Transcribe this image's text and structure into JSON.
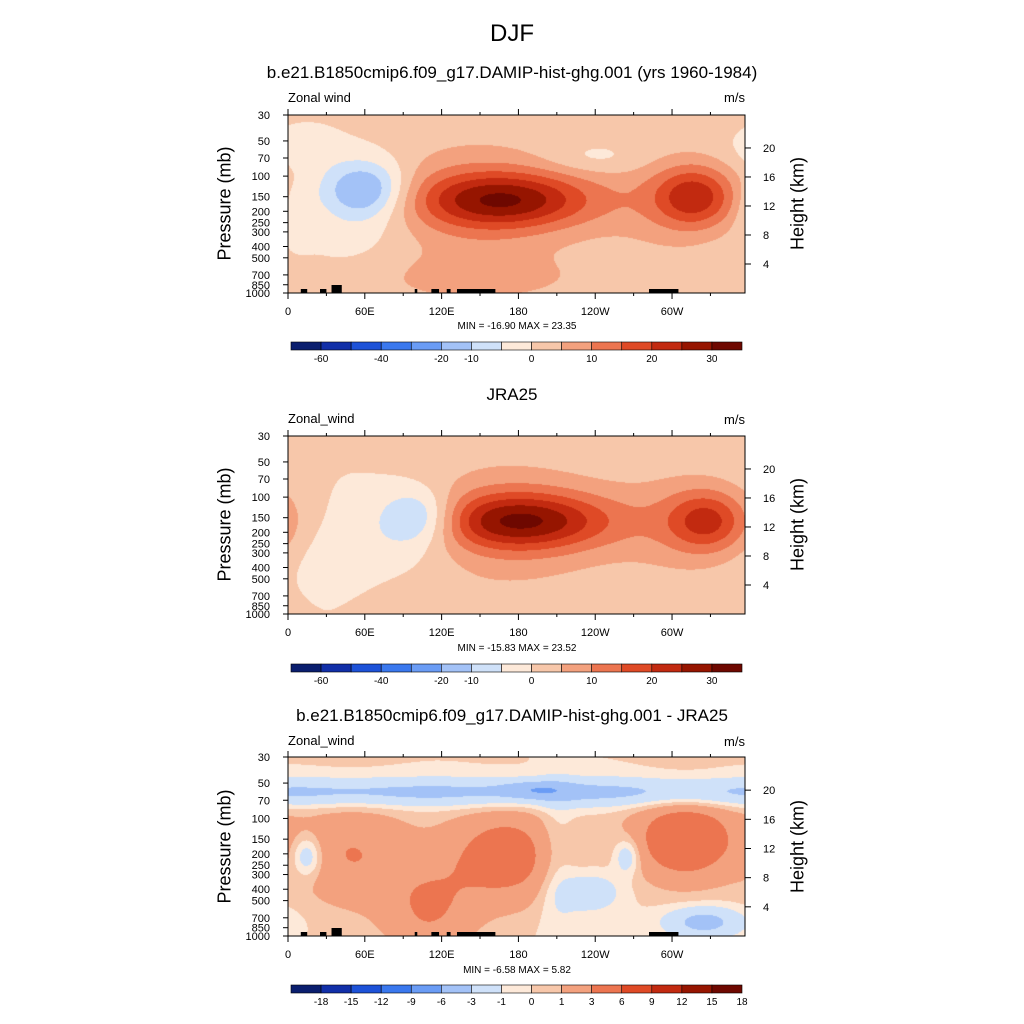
{
  "title": "DJF",
  "colors": {
    "full_palette": [
      "#0a1e6e",
      "#112fa8",
      "#1d52d8",
      "#3a78ee",
      "#6a9cf5",
      "#a3c2f7",
      "#cfe1f9",
      "#fde9d9",
      "#f7c7aa",
      "#f3a17e",
      "#ec7550",
      "#df4a26",
      "#c22a10",
      "#961500",
      "#6e0800"
    ],
    "diff_palette": [
      "#0a1e6e",
      "#112fa8",
      "#1d52d8",
      "#3a78ee",
      "#6a9cf5",
      "#a3c2f7",
      "#cfe1f9",
      "#fde9d9",
      "#f7c7aa",
      "#f3a17e",
      "#ec7550",
      "#df4a26",
      "#c22a10",
      "#961500",
      "#6e0800"
    ],
    "topo": "#000000"
  },
  "panels": [
    {
      "title": "b.e21.B1850cmip6.f09_g17.DAMIP-hist-ghg.001 (yrs 1960-1984)",
      "variable": "Zonal wind",
      "units": "m/s",
      "ylabel_left": "Pressure (mb)",
      "ylabel_right": "Height (km)",
      "stats": "MIN = -16.90  MAX =  23.35",
      "colorbar_labels": [
        "-60",
        "-40",
        "-20",
        "-10",
        "0",
        "10",
        "20",
        "30"
      ],
      "topography": true
    },
    {
      "title": "JRA25",
      "variable": "Zonal_wind",
      "units": "m/s",
      "ylabel_left": "Pressure (mb)",
      "ylabel_right": "Height (km)",
      "stats": "MIN = -15.83  MAX =  23.52",
      "colorbar_labels": [
        "-60",
        "-40",
        "-20",
        "-10",
        "0",
        "10",
        "20",
        "30"
      ],
      "topography": false
    },
    {
      "title": "b.e21.B1850cmip6.f09_g17.DAMIP-hist-ghg.001 - JRA25",
      "variable": "Zonal_wind",
      "units": "m/s",
      "ylabel_left": "Pressure (mb)",
      "ylabel_right": "Height (km)",
      "stats": "MIN =  -6.58  MAX =   5.82",
      "colorbar_labels": [
        "-18",
        "-15",
        "-12",
        "-9",
        "-6",
        "-3",
        "-1",
        "0",
        "1",
        "3",
        "6",
        "9",
        "12",
        "15",
        "18"
      ],
      "topography": true
    }
  ],
  "chart_data": [
    {
      "type": "heatmap",
      "title": "b.e21.B1850cmip6.f09_g17.DAMIP-hist-ghg.001 (yrs 1960-1984)",
      "variable": "Zonal wind",
      "units": "m/s",
      "xlabel": "",
      "ylabel": "Pressure (mb)",
      "ylabel_right": "Height (km)",
      "x_ticks": [
        "0",
        "60E",
        "120E",
        "180",
        "120W",
        "60W"
      ],
      "x_tick_values": [
        0,
        60,
        120,
        180,
        240,
        300
      ],
      "xlim": [
        0,
        357
      ],
      "y_ticks": [
        "30",
        "50",
        "70",
        "100",
        "150",
        "200",
        "250",
        "300",
        "400",
        "500",
        "700",
        "850",
        "1000"
      ],
      "y_tick_values": [
        30,
        50,
        70,
        100,
        150,
        200,
        250,
        300,
        400,
        500,
        700,
        850,
        1000
      ],
      "y_scale": "log",
      "ylim": [
        1000,
        30
      ],
      "y_right_ticks": [
        "4",
        "8",
        "12",
        "16",
        "20"
      ],
      "levels": [
        -70,
        -60,
        -50,
        -40,
        -30,
        -20,
        -10,
        -5,
        0,
        5,
        10,
        15,
        20,
        25,
        30,
        35
      ],
      "min": -16.9,
      "max": 23.35,
      "features": [
        {
          "lon": 170,
          "p": 160,
          "value": 23,
          "sx": 70,
          "sp": 0.55
        },
        {
          "lon": 145,
          "p": 170,
          "value": 9,
          "sx": 90,
          "sp": 1.4
        },
        {
          "lon": 318,
          "p": 150,
          "value": 19,
          "sx": 32,
          "sp": 0.6
        },
        {
          "lon": 300,
          "p": 170,
          "value": 6,
          "sx": 55,
          "sp": 1.2
        },
        {
          "lon": 60,
          "p": 130,
          "value": -16,
          "sx": 32,
          "sp": 0.55
        },
        {
          "lon": 60,
          "p": 200,
          "value": -5,
          "sx": 45,
          "sp": 1.1
        },
        {
          "lon": 5,
          "p": 200,
          "value": -6,
          "sx": 14,
          "sp": 0.6
        },
        {
          "lon": 10,
          "p": 60,
          "value": -4,
          "sx": 25,
          "sp": 0.35
        },
        {
          "lon": 240,
          "p": 70,
          "value": -4,
          "sx": 40,
          "sp": 0.3
        },
        {
          "lon": 145,
          "p": 780,
          "value": 5,
          "sx": 100,
          "sp": 0.5
        }
      ],
      "land": [
        [
          10,
          15
        ],
        [
          25,
          30
        ],
        [
          99,
          101
        ],
        [
          112,
          118
        ],
        [
          124,
          127
        ],
        [
          132,
          162
        ],
        [
          282,
          305
        ]
      ]
    },
    {
      "type": "heatmap",
      "title": "JRA25",
      "variable": "Zonal_wind",
      "units": "m/s",
      "xlabel": "",
      "ylabel": "Pressure (mb)",
      "ylabel_right": "Height (km)",
      "x_ticks": [
        "0",
        "60E",
        "120E",
        "180",
        "120W",
        "60W"
      ],
      "x_tick_values": [
        0,
        60,
        120,
        180,
        240,
        300
      ],
      "xlim": [
        0,
        357
      ],
      "y_ticks": [
        "30",
        "50",
        "70",
        "100",
        "150",
        "200",
        "250",
        "300",
        "400",
        "500",
        "700",
        "850",
        "1000"
      ],
      "y_tick_values": [
        30,
        50,
        70,
        100,
        150,
        200,
        250,
        300,
        400,
        500,
        700,
        850,
        1000
      ],
      "y_scale": "log",
      "ylim": [
        1000,
        30
      ],
      "y_right_ticks": [
        "4",
        "8",
        "12",
        "16",
        "20"
      ],
      "levels": [
        -70,
        -60,
        -50,
        -40,
        -30,
        -20,
        -10,
        -5,
        0,
        5,
        10,
        15,
        20,
        25,
        30,
        35
      ],
      "min": -15.83,
      "max": 23.52,
      "features": [
        {
          "lon": 183,
          "p": 160,
          "value": 23,
          "sx": 70,
          "sp": 0.55
        },
        {
          "lon": 170,
          "p": 170,
          "value": 9,
          "sx": 90,
          "sp": 1.4
        },
        {
          "lon": 328,
          "p": 160,
          "value": 17,
          "sx": 32,
          "sp": 0.6
        },
        {
          "lon": 310,
          "p": 170,
          "value": 6,
          "sx": 55,
          "sp": 1.2
        },
        {
          "lon": 103,
          "p": 150,
          "value": -15,
          "sx": 30,
          "sp": 0.55
        },
        {
          "lon": 80,
          "p": 220,
          "value": -5,
          "sx": 55,
          "sp": 1.1
        },
        {
          "lon": 40,
          "p": 500,
          "value": -4,
          "sx": 30,
          "sp": 0.8
        },
        {
          "lon": 75,
          "p": 800,
          "value": 4,
          "sx": 60,
          "sp": 0.5
        }
      ],
      "land": []
    },
    {
      "type": "heatmap",
      "title": "b.e21.B1850cmip6.f09_g17.DAMIP-hist-ghg.001 - JRA25",
      "variable": "Zonal_wind",
      "units": "m/s",
      "xlabel": "",
      "ylabel": "Pressure (mb)",
      "ylabel_right": "Height (km)",
      "x_ticks": [
        "0",
        "60E",
        "120E",
        "180",
        "120W",
        "60W"
      ],
      "x_tick_values": [
        0,
        60,
        120,
        180,
        240,
        300
      ],
      "xlim": [
        0,
        357
      ],
      "y_ticks": [
        "30",
        "50",
        "70",
        "100",
        "150",
        "200",
        "250",
        "300",
        "400",
        "500",
        "700",
        "850",
        "1000"
      ],
      "y_tick_values": [
        30,
        50,
        70,
        100,
        150,
        200,
        250,
        300,
        400,
        500,
        700,
        850,
        1000
      ],
      "y_scale": "log",
      "ylim": [
        1000,
        30
      ],
      "y_right_ticks": [
        "4",
        "8",
        "12",
        "16",
        "20"
      ],
      "levels": [
        -21,
        -18,
        -15,
        -12,
        -9,
        -6,
        -3,
        -1,
        0,
        1,
        3,
        6,
        9,
        12,
        15,
        18,
        21
      ],
      "min": -6.58,
      "max": 5.82,
      "features": [
        {
          "band": true,
          "p": 60,
          "value": -3.8,
          "sp": 0.28
        },
        {
          "lon": 195,
          "p": 57,
          "value": -2.8,
          "sx": 25,
          "sp": 0.15
        },
        {
          "lon": 170,
          "p": 210,
          "value": 4.5,
          "sx": 45,
          "sp": 0.9
        },
        {
          "lon": 310,
          "p": 150,
          "value": 5.5,
          "sx": 40,
          "sp": 0.8
        },
        {
          "lon": 50,
          "p": 200,
          "value": 3,
          "sx": 45,
          "sp": 1.0
        },
        {
          "lon": 110,
          "p": 600,
          "value": 3,
          "sx": 35,
          "sp": 0.9
        },
        {
          "lon": 210,
          "p": 250,
          "value": -1.5,
          "sx": 15,
          "sp": 1.5
        },
        {
          "lon": 265,
          "p": 210,
          "value": -3,
          "sx": 10,
          "sp": 0.35
        },
        {
          "lon": 15,
          "p": 210,
          "value": -3.5,
          "sx": 12,
          "sp": 0.4
        },
        {
          "lon": 325,
          "p": 760,
          "value": -4,
          "sx": 30,
          "sp": 0.3
        },
        {
          "lon": 235,
          "p": 420,
          "value": -2.5,
          "sx": 25,
          "sp": 0.4
        }
      ],
      "land": [
        [
          10,
          15
        ],
        [
          25,
          30
        ],
        [
          99,
          101
        ],
        [
          112,
          118
        ],
        [
          124,
          127
        ],
        [
          132,
          162
        ],
        [
          282,
          305
        ]
      ]
    }
  ]
}
